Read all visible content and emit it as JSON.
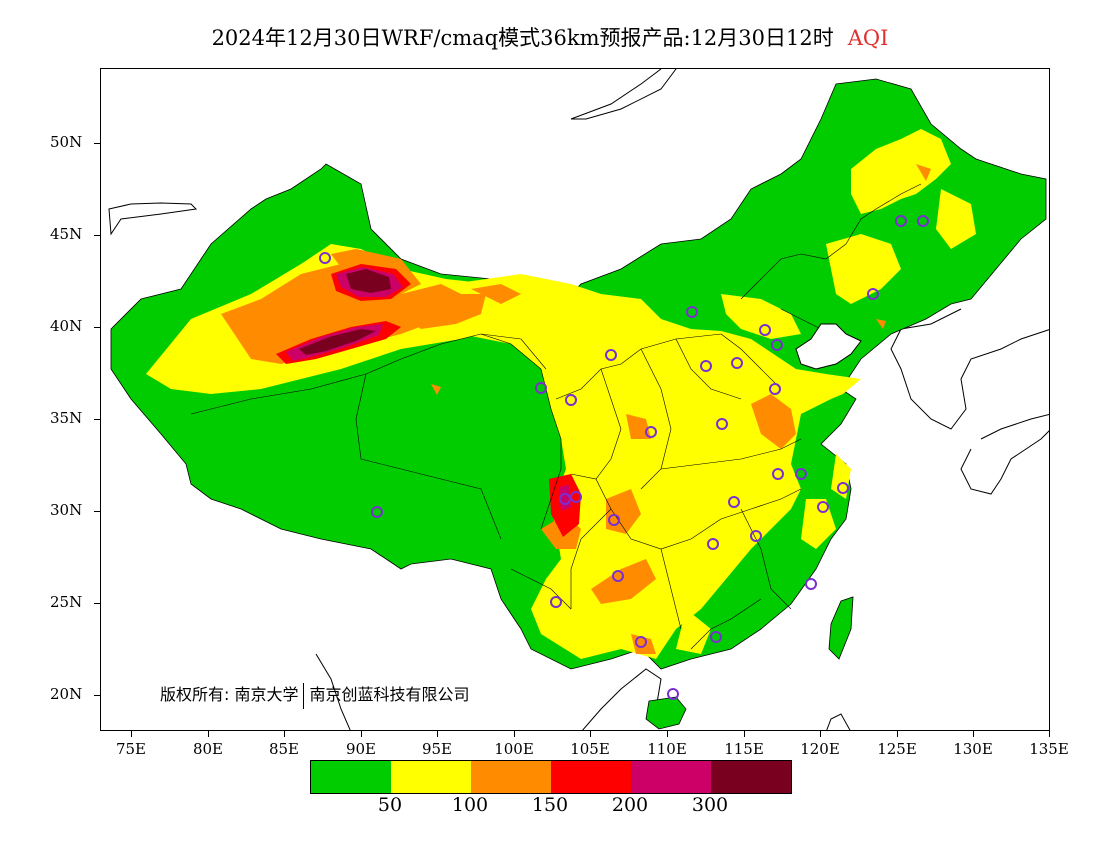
{
  "header": {
    "title": "2024年12月30日WRF/cmaq模式36km预报产品:12月30日12时",
    "variable": "AQI",
    "variable_color": "#e03030"
  },
  "map": {
    "region": "China",
    "projection": "lat-lon",
    "lon_range": [
      73,
      135
    ],
    "lat_range": [
      18,
      54
    ]
  },
  "axes": {
    "lat_labels": [
      "50N",
      "45N",
      "40N",
      "35N",
      "30N",
      "25N",
      "20N"
    ],
    "lon_labels": [
      "75E",
      "80E",
      "85E",
      "90E",
      "95E",
      "100E",
      "105E",
      "110E",
      "115E",
      "120E",
      "125E",
      "130E",
      "135E"
    ]
  },
  "copyright": {
    "owner_label": "版权所有:",
    "org1": "南京大学",
    "org2": "南京创蓝科技有限公司"
  },
  "legend": {
    "colors": [
      "#00cc00",
      "#ffff00",
      "#ff8c00",
      "#ff0000",
      "#cc0066",
      "#7a0020"
    ],
    "labels": [
      "50",
      "100",
      "150",
      "200",
      "300"
    ]
  },
  "colors": {
    "good": "#00cc00",
    "moderate": "#ffff00",
    "unhealthy_sensitive": "#ff8c00",
    "unhealthy": "#ff0000",
    "very_unhealthy": "#cc0066",
    "hazardous": "#7a0020",
    "city_marker": "#7b2fd0"
  }
}
